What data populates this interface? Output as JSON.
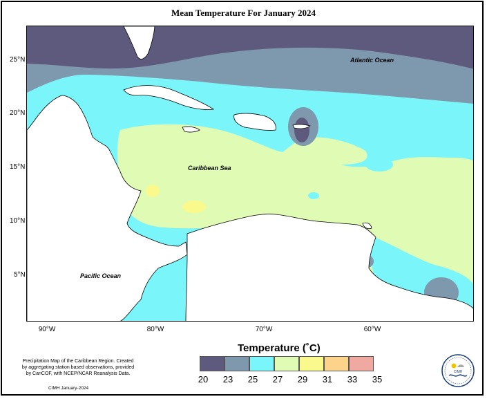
{
  "title": "Mean Temperature For January 2024",
  "map": {
    "latitude_labels": [
      "25°N",
      "20°N",
      "15°N",
      "10°N",
      "5°N"
    ],
    "longitude_labels": [
      "90°W",
      "80°W",
      "70°W",
      "60°W"
    ],
    "ocean_labels": {
      "atlantic": "Atlantic Ocean",
      "caribbean": "Caribbean Sea",
      "pacific": "Pacific Ocean"
    }
  },
  "legend": {
    "title": "Temperature (˚C)",
    "breaks": [
      "20",
      "23",
      "25",
      "27",
      "29",
      "31",
      "33",
      "35"
    ],
    "colors": [
      "#5e5a7e",
      "#7e98ad",
      "#7af6fa",
      "#e0fbb3",
      "#fafa8c",
      "#fbd38a",
      "#f0a9a0"
    ]
  },
  "credits": {
    "text": "Precipitation Map of the Caribbean Region. Created by aggregating station based observations, provided by CariCOF, with NCEP/NCAR Reanalysis Data.",
    "footer": "CIMH January-2024",
    "logo_text": "CIMH"
  }
}
